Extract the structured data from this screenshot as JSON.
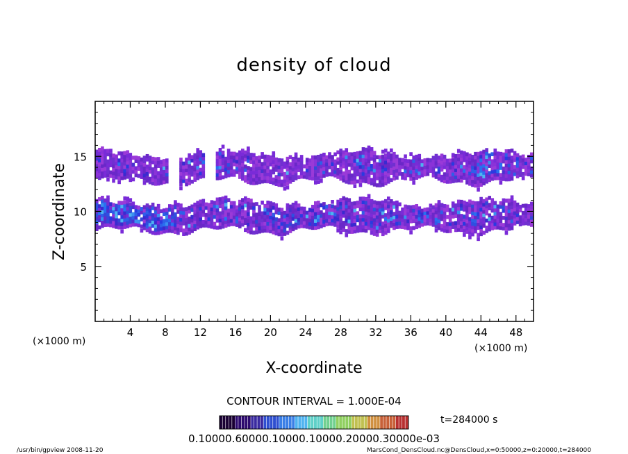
{
  "chart_data": {
    "type": "heatmap",
    "title": "density of cloud",
    "xlabel": "X-coordinate",
    "ylabel": "Z-coordinate",
    "x_unit_left": "(×1000 m)",
    "x_unit_right": "(×1000 m)",
    "xlim": [
      0,
      50
    ],
    "ylim": [
      0,
      20
    ],
    "xticks": [
      "4",
      "8",
      "12",
      "16",
      "20",
      "24",
      "28",
      "32",
      "36",
      "40",
      "44",
      "48"
    ],
    "xtick_values": [
      4,
      8,
      12,
      16,
      20,
      24,
      28,
      32,
      36,
      40,
      44,
      48
    ],
    "yticks": [
      "5",
      "10",
      "15"
    ],
    "ytick_values": [
      5,
      10,
      15
    ],
    "grid": false,
    "cloud_layers": [
      {
        "name": "upper layer",
        "x_range": [
          0,
          50
        ],
        "z_range": [
          12.4,
          15.4
        ],
        "peak_density": 0.00045
      },
      {
        "name": "lower layer",
        "x_range": [
          0,
          50
        ],
        "z_range": [
          7.9,
          11.0
        ],
        "peak_density": 0.0007
      }
    ],
    "contour_interval_label": "CONTOUR INTERVAL = 1.000E-04",
    "time_label": "t=284000 s",
    "colorbar": {
      "min": 0.0001,
      "max": 0.0007,
      "tick_text": "0.10000.60000.10000.10000.20000.30000e-03",
      "colors": [
        "#1a0033",
        "#2d0a6e",
        "#3a2aa0",
        "#2f4fd0",
        "#3a7fe6",
        "#4fb3f0",
        "#5fd0c8",
        "#70d090",
        "#90d060",
        "#c0c050",
        "#d09040",
        "#c86038",
        "#b83030"
      ]
    }
  },
  "footer": {
    "left": "/usr/bin/gpview   2008-11-20",
    "right": "MarsCond_DensCloud.nc@DensCloud,x=0:50000,z=0:20000,t=284000"
  }
}
